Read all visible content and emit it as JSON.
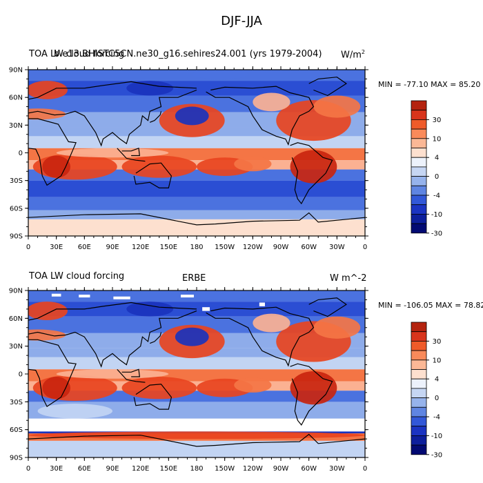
{
  "figure_title": "DJF-JJA",
  "panels": [
    {
      "left_title_a": "TOA LW cloud forcing",
      "left_title_b": "b.e13.BHISTC5CN.ne30_g16.sehires24.001 (yrs 1979-2004)",
      "units_main": "W/m",
      "units_sup": "2",
      "minmax": "MIN = -77.10 MAX =  85.20"
    },
    {
      "left_title": "TOA LW cloud forcing",
      "center_title": "ERBE",
      "units": "W m^-2",
      "minmax": "MIN = -106.05 MAX =  78.82"
    }
  ],
  "lat_labels": [
    "90N",
    "60N",
    "30N",
    "0",
    "30S",
    "60S",
    "90S"
  ],
  "lon_labels": [
    "0",
    "30E",
    "60E",
    "90E",
    "120E",
    "150E",
    "180",
    "150W",
    "120W",
    "90W",
    "60W",
    "30W",
    "0"
  ],
  "colorbar": {
    "labels": [
      "30",
      "10",
      "4",
      "0",
      "-4",
      "-10",
      "-30"
    ],
    "colors": [
      "#b4230f",
      "#d8341c",
      "#ef5b2a",
      "#f98a5a",
      "#fbb896",
      "#fde0cf",
      "#edf2fb",
      "#c6d6f3",
      "#96b3ec",
      "#5f85e2",
      "#3258d8",
      "#1b34c2",
      "#0d1f9c",
      "#020a73"
    ]
  },
  "field_colors": {
    "strong_pos": "#c9250f",
    "pos": "#e8441f",
    "mid_pos": "#f47545",
    "light_pos": "#fbb192",
    "pale_pos": "#fde0cf",
    "neutral": "#eef3fb",
    "pale_neg": "#c2d4f3",
    "light_neg": "#8eacea",
    "neg": "#4b72df",
    "mid_neg": "#2b4ed3",
    "strong_neg": "#1a33bd",
    "missing": "#ffffff"
  }
}
